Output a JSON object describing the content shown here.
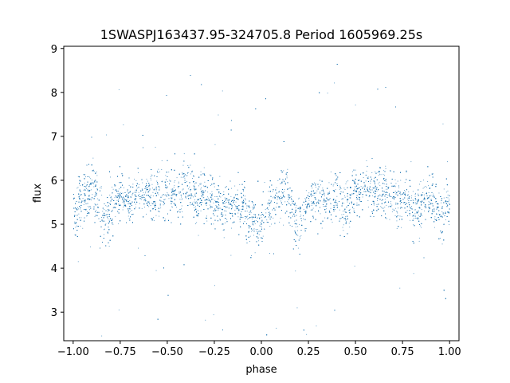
{
  "chart_data": {
    "type": "scatter",
    "title": "1SWASPJ163437.95-324705.8 Period 1605969.25s",
    "xlabel": "phase",
    "ylabel": "flux",
    "xlim": [
      -1.05,
      1.05
    ],
    "ylim": [
      2.35,
      9.05
    ],
    "x_ticks": [
      -1.0,
      -0.75,
      -0.5,
      -0.25,
      0.0,
      0.25,
      0.5,
      0.75,
      1.0
    ],
    "x_tick_labels": [
      "−1.00",
      "−0.75",
      "−0.50",
      "−0.25",
      "0.00",
      "0.25",
      "0.50",
      "0.75",
      "1.00"
    ],
    "y_ticks": [
      3,
      4,
      5,
      6,
      7,
      8,
      9
    ],
    "y_tick_labels": [
      "3",
      "4",
      "5",
      "6",
      "7",
      "8",
      "9"
    ],
    "grid": false,
    "marker_color": "#1f77b4",
    "series": [
      {
        "x": [
          -1.0,
          -0.98,
          -0.96,
          -0.94,
          -0.92,
          -0.9,
          -0.88,
          -0.86,
          -0.84,
          -0.82,
          -0.8,
          -0.78,
          -0.76,
          -0.74,
          -0.72,
          -0.7,
          -0.68,
          -0.66,
          -0.64,
          -0.62,
          -0.6,
          -0.58,
          -0.56,
          -0.54,
          -0.52,
          -0.5,
          -0.48,
          -0.46,
          -0.44,
          -0.42,
          -0.4,
          -0.38,
          -0.36,
          -0.34,
          -0.32,
          -0.3,
          -0.28,
          -0.26,
          -0.24,
          -0.22,
          -0.2,
          -0.18,
          -0.16,
          -0.14,
          -0.12,
          -0.1,
          -0.08,
          -0.06,
          -0.04,
          -0.02,
          0.0,
          0.02,
          0.04,
          0.06,
          0.08,
          0.1,
          0.12,
          0.14,
          0.16,
          0.18,
          0.2,
          0.22,
          0.24,
          0.26,
          0.28,
          0.3,
          0.32,
          0.34,
          0.36,
          0.38,
          0.4,
          0.42,
          0.44,
          0.46,
          0.48,
          0.5,
          0.52,
          0.54,
          0.56,
          0.58,
          0.6,
          0.62,
          0.64,
          0.66,
          0.68,
          0.7,
          0.72,
          0.74,
          0.76,
          0.78,
          0.8,
          0.82,
          0.84,
          0.86,
          0.88,
          0.9,
          0.92,
          0.94,
          0.96,
          0.98,
          1.0
        ],
        "y": [
          5.2,
          5.4,
          5.6,
          5.6,
          5.7,
          5.9,
          5.7,
          5.3,
          5.1,
          5.0,
          5.3,
          5.5,
          5.6,
          5.7,
          5.6,
          5.5,
          5.6,
          5.7,
          5.6,
          5.8,
          5.7,
          5.6,
          5.7,
          5.8,
          5.8,
          5.7,
          5.7,
          5.7,
          5.6,
          5.8,
          5.9,
          5.8,
          5.6,
          5.5,
          5.7,
          5.6,
          5.5,
          5.6,
          5.5,
          5.4,
          5.3,
          5.5,
          5.6,
          5.4,
          5.3,
          5.5,
          5.3,
          5.1,
          5.0,
          5.1,
          5.0,
          5.2,
          5.4,
          5.6,
          5.5,
          5.7,
          5.8,
          5.6,
          5.4,
          5.0,
          5.0,
          5.3,
          5.5,
          5.6,
          5.6,
          5.5,
          5.6,
          5.5,
          5.5,
          5.6,
          5.7,
          5.6,
          5.4,
          5.5,
          5.7,
          5.8,
          5.7,
          5.8,
          5.9,
          5.8,
          5.8,
          5.9,
          5.8,
          5.7,
          5.7,
          5.6,
          5.5,
          5.5,
          5.6,
          5.6,
          5.5,
          5.4,
          5.3,
          5.6,
          5.7,
          5.6,
          5.4,
          5.3,
          5.2,
          5.4,
          5.4
        ],
        "spread": [
          0.5,
          0.5,
          0.55,
          0.6,
          0.6,
          0.55,
          0.55,
          0.6,
          0.7,
          0.7,
          0.65,
          0.55,
          0.5,
          0.5,
          0.45,
          0.45,
          0.45,
          0.45,
          0.45,
          0.45,
          0.45,
          0.5,
          0.55,
          0.6,
          0.6,
          0.55,
          0.5,
          0.5,
          0.55,
          0.6,
          0.6,
          0.55,
          0.5,
          0.55,
          0.5,
          0.5,
          0.5,
          0.55,
          0.55,
          0.55,
          0.55,
          0.55,
          0.55,
          0.55,
          0.55,
          0.55,
          0.55,
          0.55,
          0.55,
          0.55,
          0.55,
          0.55,
          0.5,
          0.5,
          0.5,
          0.55,
          0.55,
          0.55,
          0.6,
          0.65,
          0.65,
          0.55,
          0.5,
          0.5,
          0.45,
          0.45,
          0.45,
          0.45,
          0.45,
          0.45,
          0.5,
          0.5,
          0.55,
          0.6,
          0.6,
          0.55,
          0.5,
          0.5,
          0.5,
          0.5,
          0.55,
          0.55,
          0.55,
          0.5,
          0.5,
          0.45,
          0.5,
          0.55,
          0.55,
          0.55,
          0.55,
          0.55,
          0.55,
          0.5,
          0.5,
          0.55,
          0.6,
          0.6,
          0.55,
          0.5,
          0.5
        ]
      }
    ]
  }
}
